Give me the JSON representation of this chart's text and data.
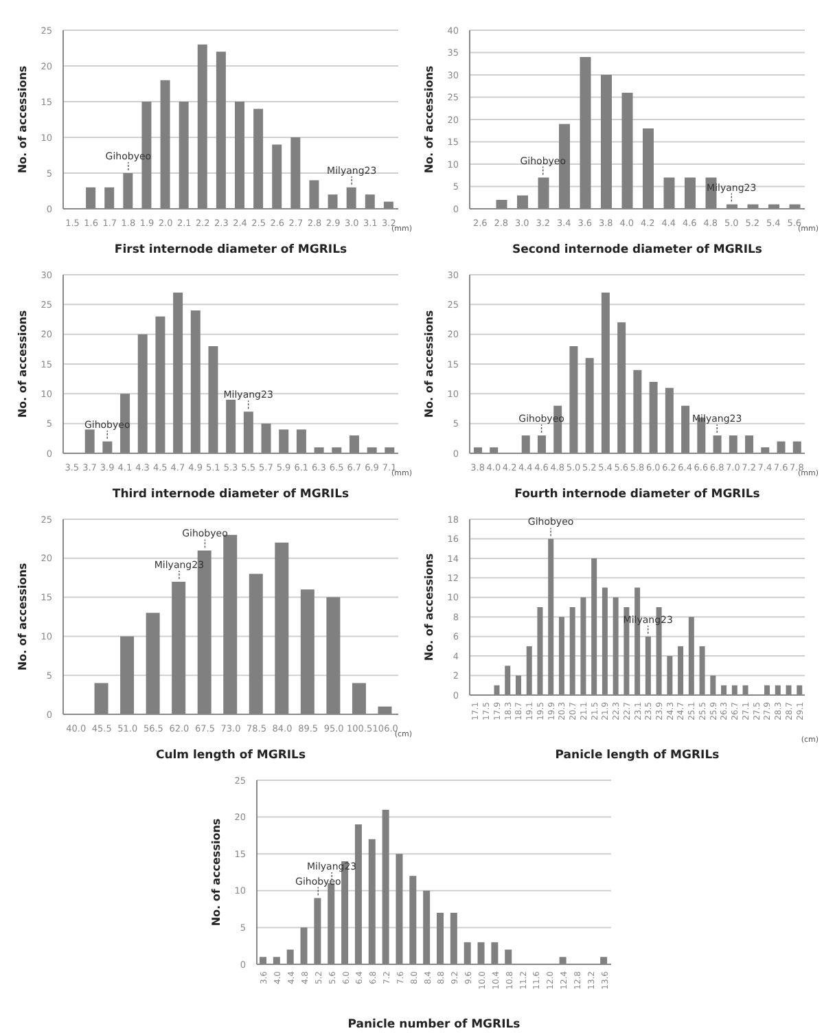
{
  "chart_data": [
    {
      "type": "bar",
      "xlabel": "First internode diameter of MGRILs",
      "ylabel": "No. of accessions",
      "categories": [
        "1.5",
        "1.6",
        "1.7",
        "1.8",
        "1.9",
        "2.0",
        "2.1",
        "2.2",
        "2.3",
        "2.4",
        "2.5",
        "2.6",
        "2.7",
        "2.8",
        "2.9",
        "3.0",
        "3.1",
        "3.2"
      ],
      "values": [
        0,
        3,
        3,
        5,
        15,
        18,
        15,
        23,
        22,
        15,
        14,
        9,
        10,
        4,
        2,
        3,
        2,
        1
      ],
      "color": "#808080",
      "ylim": [
        0,
        25
      ],
      "yticks": [
        0,
        5,
        10,
        15,
        20,
        25
      ],
      "grid": "y",
      "annotations": [
        {
          "text": "Gihobyeo",
          "x": "1.8",
          "y": 5
        },
        {
          "text": "Milyang23",
          "x": "3.0",
          "y": 3
        },
        "(mm)"
      ]
    },
    {
      "type": "bar",
      "xlabel": "Second internode diameter of MGRILs",
      "ylabel": "No. of accessions",
      "categories": [
        "2.6",
        "2.8",
        "3.0",
        "3.2",
        "3.4",
        "3.6",
        "3.8",
        "4.0",
        "4.2",
        "4.4",
        "4.6",
        "4.8",
        "5.0",
        "5.2",
        "5.4",
        "5.6"
      ],
      "values": [
        0,
        2,
        3,
        7,
        19,
        34,
        30,
        26,
        18,
        7,
        7,
        7,
        1,
        1,
        1,
        1
      ],
      "color": "#808080",
      "ylim": [
        0,
        40
      ],
      "yticks": [
        0,
        5,
        10,
        15,
        20,
        25,
        30,
        35,
        40
      ],
      "grid": "y",
      "annotations": [
        {
          "text": "Gihobyeo",
          "x": "3.2",
          "y": 7
        },
        {
          "text": "Milyang23",
          "x": "5.0",
          "y": 1
        },
        "(mm)"
      ]
    },
    {
      "type": "bar",
      "xlabel": "Third internode diameter of MGRILs",
      "ylabel": "No. of accessions",
      "categories": [
        "3.5",
        "3.7",
        "3.9",
        "4.1",
        "4.3",
        "4.5",
        "4.7",
        "4.9",
        "5.1",
        "5.3",
        "5.5",
        "5.7",
        "5.9",
        "6.1",
        "6.3",
        "6.5",
        "6.7",
        "6.9",
        "7.1"
      ],
      "values": [
        0,
        4,
        2,
        10,
        20,
        23,
        27,
        24,
        18,
        9,
        7,
        5,
        4,
        4,
        1,
        1,
        3,
        1,
        1
      ],
      "color": "#808080",
      "ylim": [
        0,
        30
      ],
      "yticks": [
        0,
        5,
        10,
        15,
        20,
        25,
        30
      ],
      "grid": "y",
      "annotations": [
        {
          "text": "Gihobyeo",
          "x": "3.9",
          "y": 2
        },
        {
          "text": "Milyang23",
          "x": "5.5",
          "y": 7
        },
        "(mm)"
      ]
    },
    {
      "type": "bar",
      "xlabel": "Fourth internode diameter of MGRILs",
      "ylabel": "No. of accessions",
      "categories": [
        "3.8",
        "4.0",
        "4.2",
        "4.4",
        "4.6",
        "4.8",
        "5.0",
        "5.2",
        "5.4",
        "5.6",
        "5.8",
        "6.0",
        "6.2",
        "6.4",
        "6.6",
        "6.8",
        "7.0",
        "7.2",
        "7.4",
        "7.6",
        "7.8"
      ],
      "values": [
        1,
        1,
        0,
        3,
        3,
        8,
        18,
        16,
        27,
        22,
        14,
        12,
        11,
        8,
        6,
        3,
        3,
        3,
        1,
        2,
        2
      ],
      "color": "#808080",
      "ylim": [
        0,
        30
      ],
      "yticks": [
        0,
        5,
        10,
        15,
        20,
        25,
        30
      ],
      "grid": "y",
      "annotations": [
        {
          "text": "Gihobyeo",
          "x": "4.6",
          "y": 3
        },
        {
          "text": "Milyang23",
          "x": "6.8",
          "y": 3
        },
        "(mm)"
      ]
    },
    {
      "type": "bar",
      "xlabel": "Culm length of MGRILs",
      "ylabel": "No. of accessions",
      "categories": [
        "40.0",
        "45.5",
        "51.0",
        "56.5",
        "62.0",
        "67.5",
        "73.0",
        "78.5",
        "84.0",
        "89.5",
        "95.0",
        "100.5",
        "106.0"
      ],
      "values": [
        0,
        4,
        10,
        13,
        17,
        21,
        23,
        18,
        22,
        16,
        15,
        4,
        1
      ],
      "color": "#808080",
      "ylim": [
        0,
        25
      ],
      "yticks": [
        0,
        5,
        10,
        15,
        20,
        25
      ],
      "grid": "y",
      "annotations": [
        {
          "text": "Milyang23",
          "x": "62.0",
          "y": 17
        },
        {
          "text": "Gihobyeo",
          "x": "67.5",
          "y": 21
        },
        "(cm)"
      ]
    },
    {
      "type": "bar",
      "xlabel": "Panicle length of MGRILs",
      "ylabel": "No. of accessions",
      "categories": [
        "17.1",
        "17.5",
        "17.9",
        "18.3",
        "18.7",
        "19.1",
        "19.5",
        "19.9",
        "20.3",
        "20.7",
        "21.1",
        "21.5",
        "21.9",
        "22.3",
        "22.7",
        "23.1",
        "23.5",
        "23.9",
        "24.3",
        "24.7",
        "25.1",
        "25.5",
        "25.9",
        "26.3",
        "26.7",
        "27.1",
        "27.5",
        "27.9",
        "28.3",
        "28.7",
        "29.1"
      ],
      "values": [
        0,
        0,
        1,
        3,
        2,
        5,
        9,
        16,
        8,
        9,
        10,
        14,
        11,
        10,
        9,
        11,
        6,
        9,
        4,
        5,
        8,
        5,
        2,
        1,
        1,
        1,
        0,
        1,
        1,
        1,
        1
      ],
      "color": "#808080",
      "ylim": [
        0,
        18
      ],
      "yticks": [
        0,
        2,
        4,
        6,
        8,
        10,
        12,
        14,
        16,
        18
      ],
      "grid": "y",
      "annotations": [
        {
          "text": "Gihobyeo",
          "x": "19.9",
          "y": 16
        },
        {
          "text": "Milyang23",
          "x": "23.5",
          "y": 6
        },
        "(cm)"
      ]
    },
    {
      "type": "bar",
      "xlabel": "Panicle number of MGRILs",
      "ylabel": "No. of accessions",
      "categories": [
        "3.6",
        "4.0",
        "4.4",
        "4.8",
        "5.2",
        "5.6",
        "6.0",
        "6.4",
        "6.8",
        "7.2",
        "7.6",
        "8.0",
        "8.4",
        "8.8",
        "9.2",
        "9.6",
        "10.0",
        "10.4",
        "10.8",
        "11.2",
        "11.6",
        "12.0",
        "12.4",
        "12.8",
        "13.2",
        "13.6"
      ],
      "values": [
        1,
        1,
        2,
        5,
        9,
        11,
        14,
        19,
        17,
        21,
        15,
        12,
        10,
        7,
        7,
        3,
        3,
        3,
        2,
        0,
        0,
        0,
        1,
        0,
        0,
        1
      ],
      "color": "#808080",
      "ylim": [
        0,
        25
      ],
      "yticks": [
        0,
        5,
        10,
        15,
        20,
        25
      ],
      "grid": "y",
      "annotations": [
        {
          "text": "Gihobyeo",
          "x": "5.2",
          "y": 9
        },
        {
          "text": "Milyang23",
          "x": "5.6",
          "y": 11
        }
      ]
    }
  ]
}
